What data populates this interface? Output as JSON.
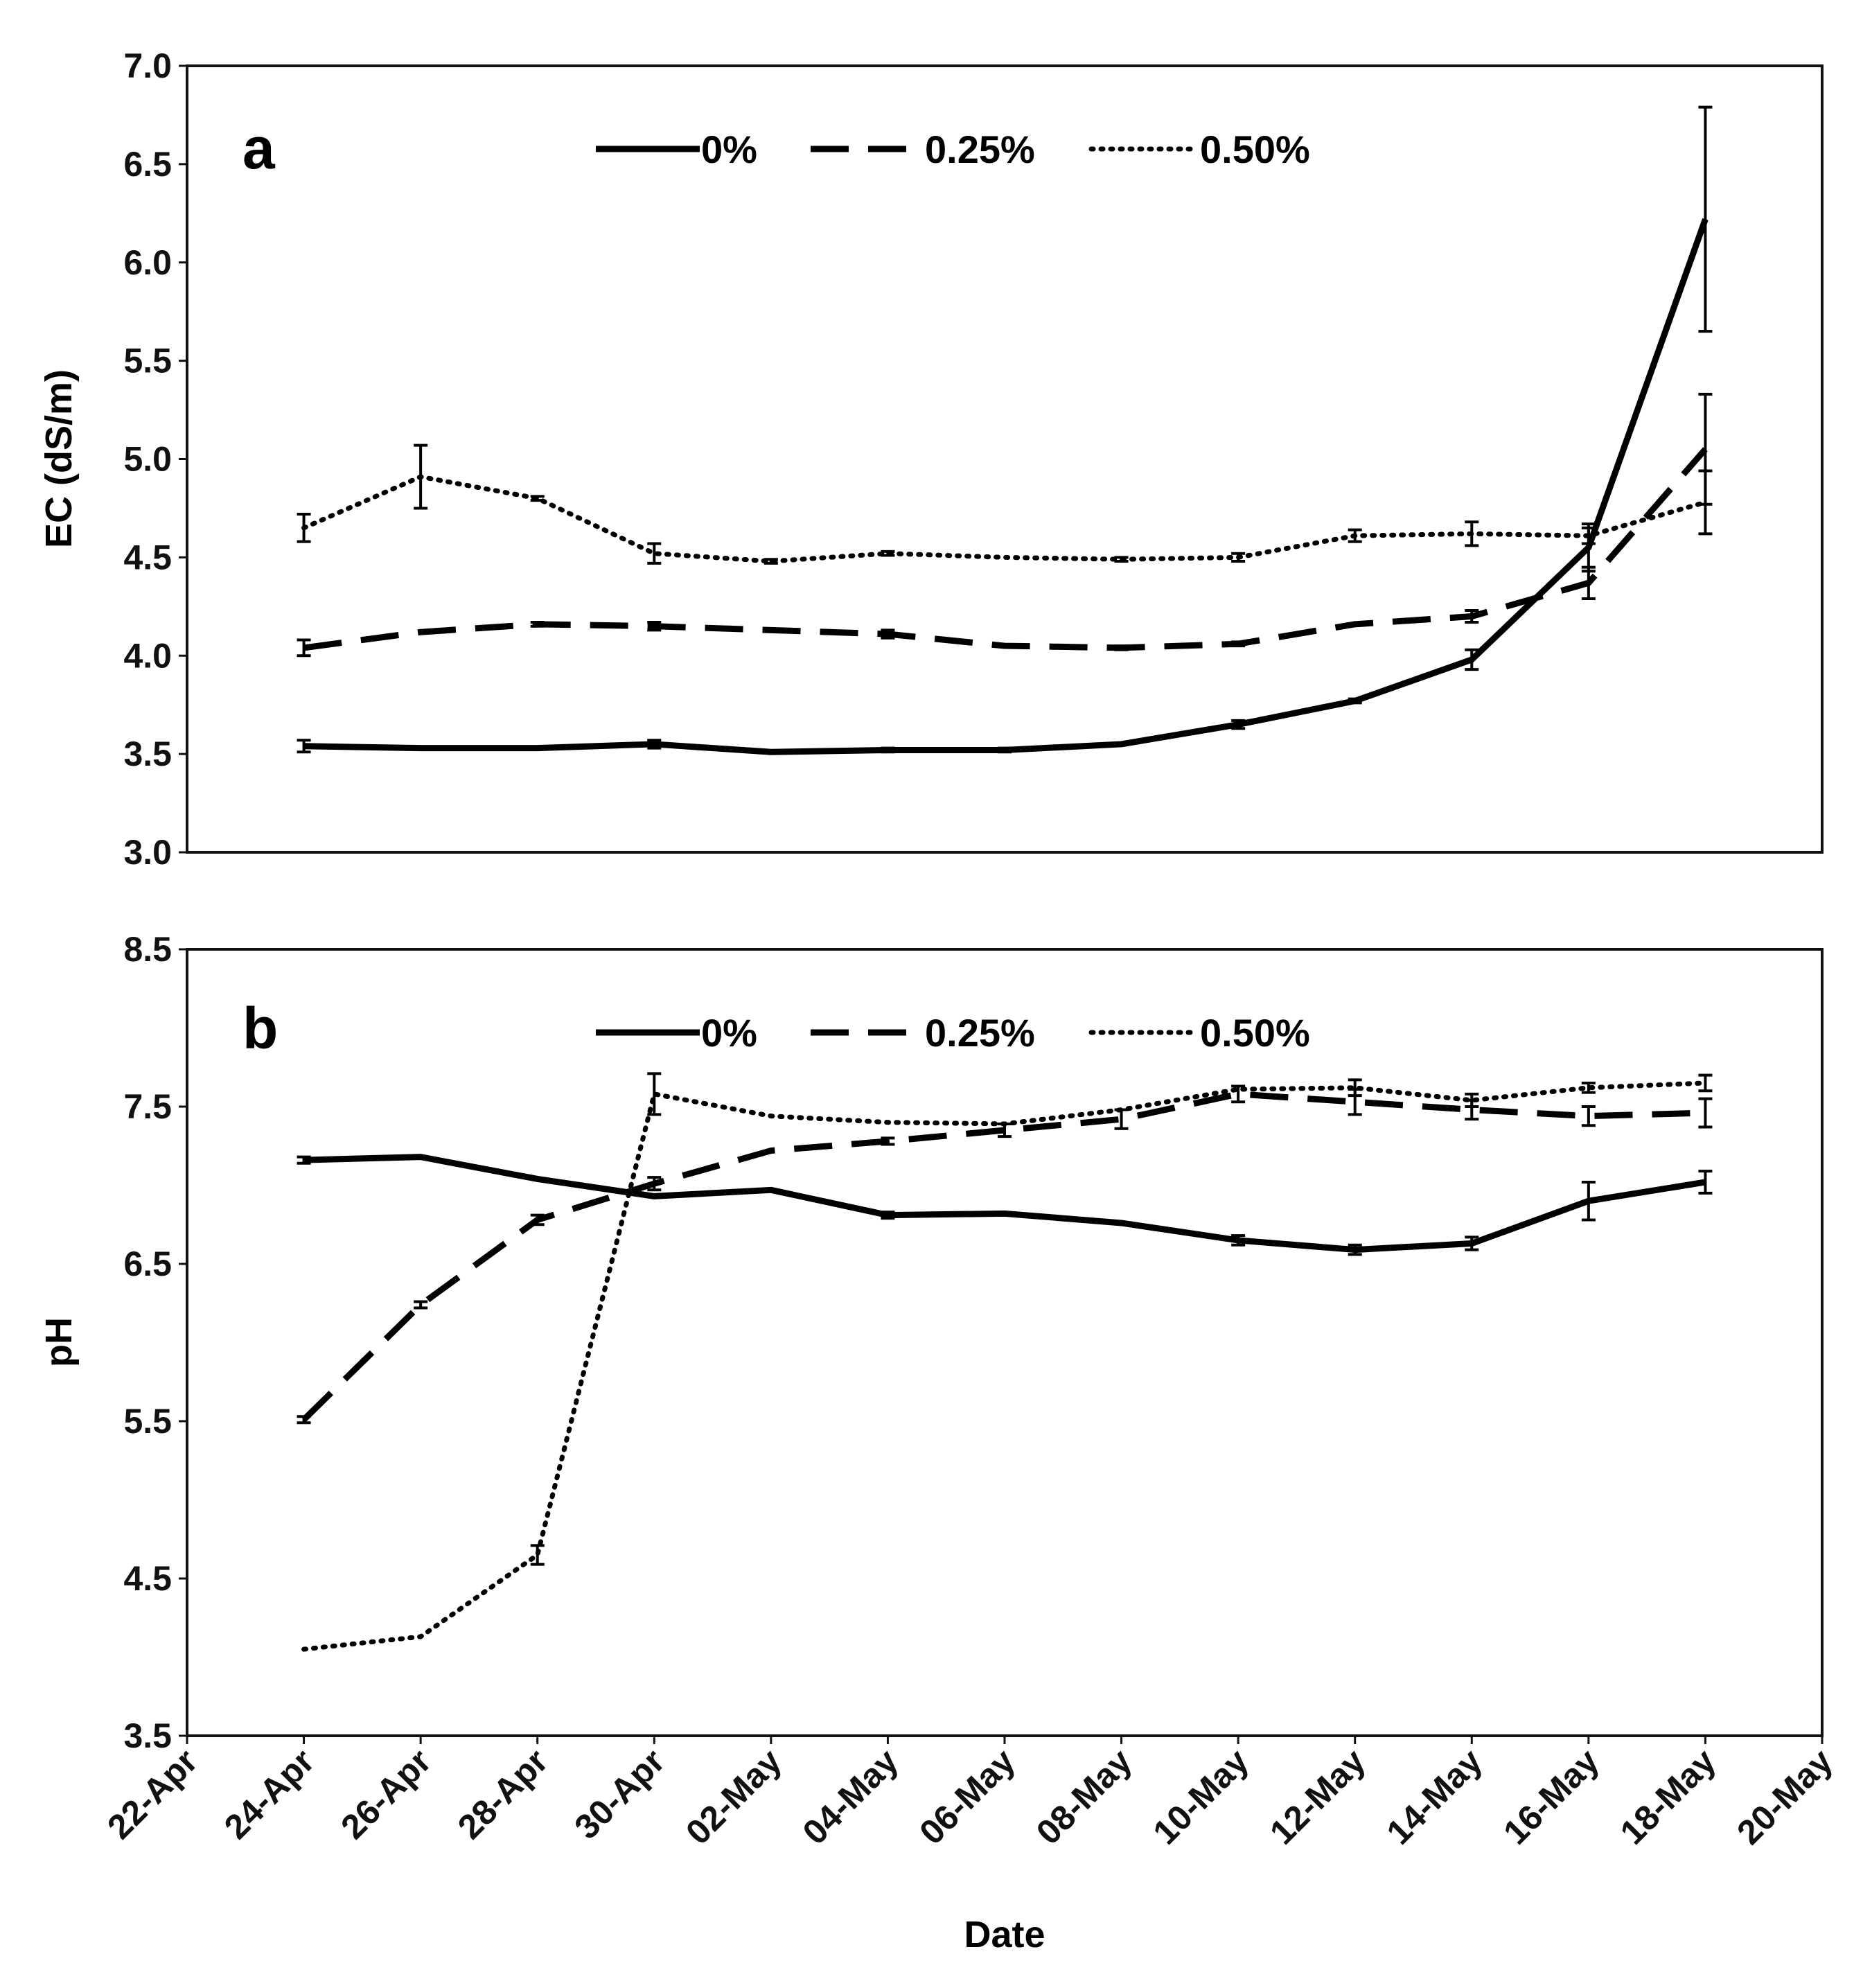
{
  "chart_data": {
    "type": "line",
    "xlabel": "Date",
    "x_ticks": [
      "22-Apr",
      "24-Apr",
      "26-Apr",
      "28-Apr",
      "30-Apr",
      "02-May",
      "04-May",
      "06-May",
      "08-May",
      "10-May",
      "12-May",
      "14-May",
      "16-May",
      "18-May",
      "20-May"
    ],
    "x_days": [
      24,
      26,
      28,
      30,
      32,
      34,
      36,
      38,
      40,
      42,
      44,
      46,
      48
    ],
    "panels": [
      {
        "label": "a",
        "ylabel": "EC (dS/m)",
        "ylim": [
          3.0,
          7.0
        ],
        "y_ticks": [
          "3.0",
          "3.5",
          "4.0",
          "4.5",
          "5.0",
          "5.5",
          "6.0",
          "6.5",
          "7.0"
        ],
        "legend": [
          "0%",
          "0.25%",
          "0.50%"
        ],
        "series": [
          {
            "name": "0%",
            "style": "solid",
            "values": [
              3.54,
              3.53,
              3.53,
              3.55,
              3.51,
              3.52,
              3.52,
              3.55,
              3.65,
              3.77,
              3.98,
              4.55,
              6.22
            ],
            "errors": [
              0.03,
              0,
              0,
              0.02,
              0,
              0.01,
              0.01,
              0,
              0.02,
              0.01,
              0.05,
              0.12,
              0.57
            ]
          },
          {
            "name": "0.25%",
            "style": "dashed",
            "values": [
              4.04,
              4.12,
              4.16,
              4.15,
              4.13,
              4.11,
              4.05,
              4.04,
              4.06,
              4.16,
              4.2,
              4.37,
              5.05
            ],
            "errors": [
              0.04,
              0,
              0.01,
              0.02,
              0,
              0.02,
              0,
              0.01,
              0.01,
              0,
              0.03,
              0.08,
              0.28
            ]
          },
          {
            "name": "0.50%",
            "style": "dotted",
            "values": [
              4.65,
              4.91,
              4.8,
              4.52,
              4.48,
              4.52,
              4.5,
              4.49,
              4.5,
              4.61,
              4.62,
              4.61,
              4.78
            ],
            "errors": [
              0.07,
              0.16,
              0.01,
              0.05,
              0.01,
              0.01,
              0,
              0.01,
              0.02,
              0.03,
              0.06,
              0.04,
              0.16
            ]
          }
        ]
      },
      {
        "label": "b",
        "ylabel": "pH",
        "ylim": [
          3.5,
          8.5
        ],
        "y_ticks": [
          "3.5",
          "4.5",
          "5.5",
          "6.5",
          "7.5",
          "8.5"
        ],
        "legend": [
          "0%",
          "0.25%",
          "0.50%"
        ],
        "series": [
          {
            "name": "0%",
            "style": "solid",
            "values": [
              7.16,
              7.18,
              7.04,
              6.93,
              6.97,
              6.81,
              6.82,
              6.76,
              6.65,
              6.59,
              6.63,
              6.9,
              7.02
            ],
            "errors": [
              0.02,
              0,
              0,
              0,
              0,
              0.02,
              0,
              0,
              0.03,
              0.03,
              0.04,
              0.12,
              0.07
            ]
          },
          {
            "name": "0.25%",
            "style": "dashed",
            "values": [
              5.51,
              6.24,
              6.78,
              7.01,
              7.22,
              7.28,
              7.35,
              7.42,
              7.58,
              7.53,
              7.48,
              7.44,
              7.46
            ],
            "errors": [
              0.02,
              0.02,
              0.03,
              0.04,
              0,
              0.02,
              0.04,
              0.06,
              0.05,
              0.08,
              0.06,
              0.06,
              0.09
            ]
          },
          {
            "name": "0.50%",
            "style": "dotted",
            "values": [
              4.05,
              4.13,
              4.65,
              7.58,
              7.44,
              7.4,
              7.39,
              7.48,
              7.61,
              7.62,
              7.54,
              7.62,
              7.65
            ],
            "errors": [
              0,
              0,
              0.06,
              0.13,
              0,
              0,
              0,
              0,
              0,
              0.05,
              0.04,
              0.03,
              0.05
            ]
          }
        ]
      }
    ]
  }
}
